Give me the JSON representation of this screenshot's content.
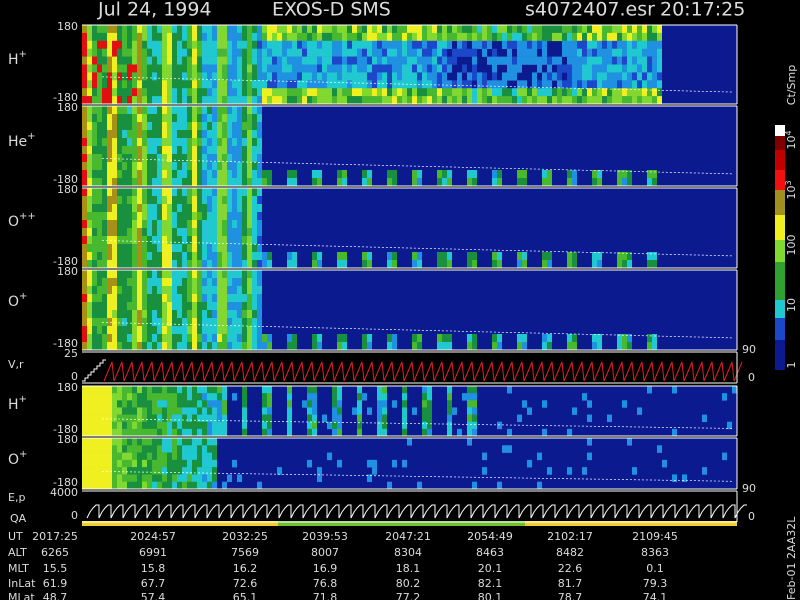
{
  "header": {
    "date": "Jul 24, 1994",
    "instrument": "EXOS-D SMS",
    "file": "s4072407.esr",
    "time": "20:17:25"
  },
  "panels": [
    {
      "ion": "H",
      "charge": "+",
      "top": "180",
      "bottom": "-180"
    },
    {
      "ion": "He",
      "charge": "+",
      "top": "180",
      "bottom": "-180"
    },
    {
      "ion": "O",
      "charge": "++",
      "top": "180",
      "bottom": "-180"
    },
    {
      "ion": "O",
      "charge": "+",
      "top": "180",
      "bottom": "-180"
    },
    {
      "ion": "V,r",
      "top": "25",
      "bottom": "0",
      "right_top": "90",
      "right_bottom": "0"
    },
    {
      "ion": "H",
      "charge": "+",
      "top": "180",
      "bottom": "-180"
    },
    {
      "ion": "O",
      "charge": "+",
      "top": "180",
      "bottom": "-180"
    },
    {
      "ion": "E,p",
      "top": "4000",
      "bottom": "0",
      "right_top": "90",
      "right_bottom": "0"
    }
  ],
  "qa_label": "QA",
  "colorbar": {
    "unit": "Ct/Smp",
    "labels": [
      {
        "base": "10",
        "exp": "4"
      },
      {
        "base": "10",
        "exp": "3"
      },
      {
        "base": "100"
      },
      {
        "base": "10"
      },
      {
        "base": "1"
      }
    ]
  },
  "footer": {
    "rows": [
      {
        "label": "UT",
        "values": [
          "2017:25",
          "2024:57",
          "2032:25",
          "2039:53",
          "2047:21",
          "2054:49",
          "2102:17",
          "2109:45"
        ]
      },
      {
        "label": "ALT",
        "values": [
          "6265",
          "6991",
          "7569",
          "8007",
          "8304",
          "8463",
          "8482",
          "8363"
        ]
      },
      {
        "label": "MLT",
        "values": [
          "15.5",
          "15.8",
          "16.2",
          "16.9",
          "18.1",
          "20.1",
          "22.6",
          "0.1"
        ]
      },
      {
        "label": "InLat",
        "values": [
          "61.9",
          "67.7",
          "72.6",
          "76.8",
          "80.2",
          "82.1",
          "81.7",
          "79.3"
        ]
      },
      {
        "label": "MLat",
        "values": [
          "48.7",
          "57.4",
          "65.1",
          "71.8",
          "77.2",
          "80.1",
          "78.7",
          "74.1"
        ]
      }
    ]
  },
  "tag": "Feb-01 2AA32L"
}
